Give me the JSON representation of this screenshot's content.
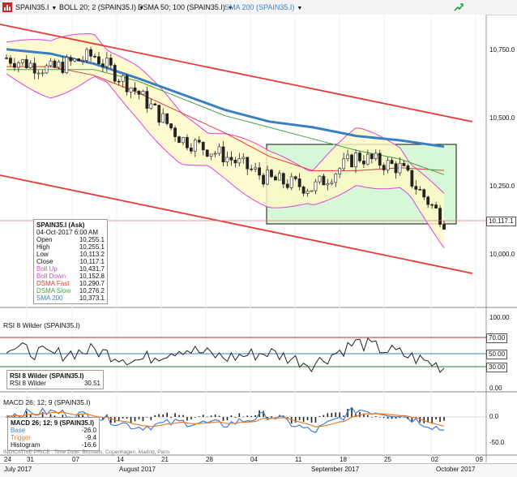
{
  "toolbar": {
    "symbol": "SPAIN35.I",
    "boll": "BOLL 20; 2 (SPAIN35.I)",
    "dsma": "DSMA 50; 100 (SPAIN35.I)",
    "sma": "SMA 200 (SPAIN35.I)"
  },
  "colors": {
    "price_up": "#1a1a1a",
    "price_down": "#1a1a1a",
    "boll": "#e040e0",
    "dsma_fast": "#e53935",
    "dsma_slow": "#43a047",
    "sma200": "#3a7fc4",
    "channel": "#e53935",
    "box_fill": "#c8f5c8",
    "boll_fill": "#fff9c4",
    "macd_base": "#3b7fd9",
    "macd_trigger": "#e87d2a"
  },
  "main_legend": {
    "title": "SPAIN35.I (Ask)",
    "date": "04-Oct-2017 6:00 AM",
    "rows": [
      {
        "label": "Open",
        "value": "10,255.1"
      },
      {
        "label": "High",
        "value": "10,255.1"
      },
      {
        "label": "Low",
        "value": "10,113.2"
      },
      {
        "label": "Close",
        "value": "10,117.1"
      },
      {
        "label": "Boll Up",
        "value": "10,431.7"
      },
      {
        "label": "Boll Down",
        "value": "10,152.8"
      },
      {
        "label": "DSMA Fast",
        "value": "10,290.7"
      },
      {
        "label": "DSMA Slow",
        "value": "10,276.2"
      },
      {
        "label": "SMA 200",
        "value": "10,373.1"
      }
    ]
  },
  "price_axis": {
    "ticks": [
      "10,750.0",
      "10,500.0",
      "10,250.0",
      "10,000.0"
    ],
    "last": "10,117.1"
  },
  "rsi": {
    "title": "RSI 8 Wilder (SPAIN35.I)",
    "legend_title": "RSI 8 Wilder (SPAIN35.I)",
    "legend_label": "RSI 8 Wilder",
    "legend_value": "30.51",
    "ticks": [
      "100.00",
      "70.00",
      "50.00",
      "30.00",
      "0.00"
    ]
  },
  "macd": {
    "title": "MACD 26; 12; 9 (SPAIN35.I)",
    "legend_title": "MACD 26; 12; 9 (SPAIN35.I)",
    "rows": [
      {
        "label": "Base",
        "value": "-26.0"
      },
      {
        "label": "Trigger",
        "value": "-9.4"
      },
      {
        "label": "Histogram",
        "value": "-16.6"
      }
    ],
    "ticks": [
      "0.0",
      "-50.0"
    ]
  },
  "footer": {
    "note": "INDICATIVE PRICE . Time Zone: Brussels, Copenhagen, Madrid, Paris"
  },
  "x_axis": {
    "days": [
      "24",
      "31",
      "07",
      "14",
      "21",
      "28",
      "04",
      "11",
      "18",
      "25",
      "02",
      "09"
    ],
    "months": [
      "July 2017",
      "August 2017",
      "September 2017",
      "October 2017"
    ]
  },
  "chart_data": {
    "type": "line",
    "title": "SPAIN35.I",
    "x_dates": [
      "2017-07-24",
      "2017-07-31",
      "2017-08-07",
      "2017-08-14",
      "2017-08-21",
      "2017-08-28",
      "2017-09-04",
      "2017-09-11",
      "2017-09-18",
      "2017-09-25",
      "2017-10-02"
    ],
    "ylim": [
      9870,
      10830
    ],
    "series": [
      {
        "name": "SPAIN35.I (Ask)",
        "values": [
          10680,
          10640,
          10690,
          10560,
          10400,
          10340,
          10260,
          10230,
          10340,
          10300,
          10117.1
        ]
      },
      {
        "name": "SMA 200",
        "values": [
          10710,
          10695,
          10660,
          10610,
          10555,
          10500,
          10460,
          10440,
          10410,
          10395,
          10373.1
        ]
      },
      {
        "name": "DSMA Fast",
        "values": [
          10650,
          10650,
          10620,
          10560,
          10490,
          10420,
          10340,
          10290,
          10290,
          10300,
          10290.7
        ]
      },
      {
        "name": "DSMA Slow",
        "values": [
          10640,
          10640,
          10640,
          10600,
          10540,
          10480,
          10440,
          10400,
          10360,
          10330,
          10276.2
        ]
      }
    ],
    "rsi_values": [
      60,
      48,
      55,
      40,
      58,
      44,
      52,
      35,
      66,
      50,
      30.51
    ],
    "macd_values": [
      5,
      10,
      2,
      -20,
      -10,
      -15,
      4,
      -30,
      15,
      5,
      -26.0
    ]
  }
}
